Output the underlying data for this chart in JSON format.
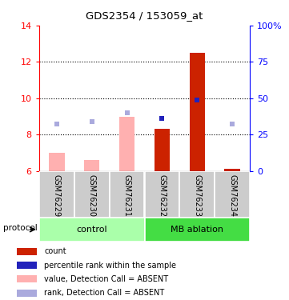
{
  "title": "GDS2354 / 153059_at",
  "samples": [
    "GSM76229",
    "GSM76230",
    "GSM76231",
    "GSM76232",
    "GSM76233",
    "GSM76234"
  ],
  "ylim_left": [
    6,
    14
  ],
  "ylim_right": [
    0,
    100
  ],
  "yticks_left": [
    6,
    8,
    10,
    12,
    14
  ],
  "yticks_right": [
    0,
    25,
    50,
    75,
    100
  ],
  "ytick_right_labels": [
    "0",
    "25",
    "50",
    "75",
    "100%"
  ],
  "bar_values": [
    7.0,
    6.6,
    9.0,
    8.3,
    12.5,
    6.1
  ],
  "bar_colors": [
    "#FFB0B0",
    "#FFB0B0",
    "#FFB0B0",
    "#CC2200",
    "#CC2200",
    "#CC2200"
  ],
  "rank_markers": [
    8.6,
    8.7,
    9.2,
    8.9,
    9.9,
    8.6
  ],
  "rank_colors": [
    "#AAAADD",
    "#AAAADD",
    "#AAAADD",
    "#2222BB",
    "#2222BB",
    "#AAAADD"
  ],
  "baseline": 6.0,
  "control_color": "#AAFFAA",
  "mb_ablation_color": "#44DD44",
  "sample_box_color": "#CCCCCC",
  "legend_entries": [
    {
      "color": "#CC2200",
      "label": "count"
    },
    {
      "color": "#2222BB",
      "label": "percentile rank within the sample"
    },
    {
      "color": "#FFB0B0",
      "label": "value, Detection Call = ABSENT"
    },
    {
      "color": "#AAAADD",
      "label": "rank, Detection Call = ABSENT"
    }
  ]
}
